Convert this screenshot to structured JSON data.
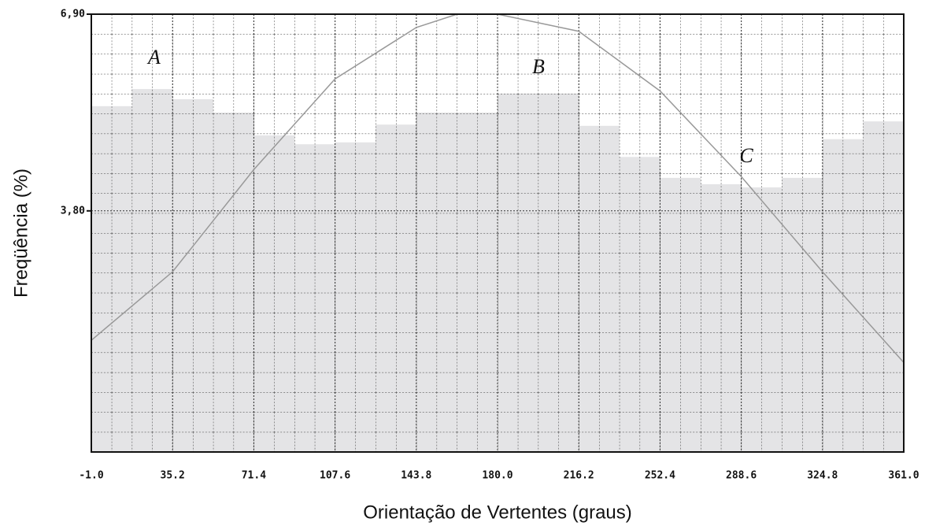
{
  "chart_data": {
    "type": "histogram",
    "x_label": "Orientação de Vertentes (graus)",
    "y_label": "Freqüência (%)",
    "bins": [
      -1,
      17.1,
      35.2,
      53.3,
      71.4,
      89.5,
      107.6,
      125.7,
      143.8,
      161.9,
      180,
      198.1,
      216.2,
      234.3,
      252.4,
      270.5,
      288.6,
      306.7,
      324.8,
      342.9,
      361
    ],
    "values": [
      5.45,
      5.72,
      5.56,
      5.35,
      4.99,
      4.85,
      4.88,
      5.16,
      5.35,
      5.35,
      5.65,
      5.65,
      5.14,
      4.65,
      4.32,
      4.22,
      4.17,
      4.32,
      4.93,
      5.21
    ],
    "color": "#e4e4e6",
    "curve": {
      "x": [
        -1,
        35.2,
        71.4,
        107.6,
        143.8,
        162,
        180,
        216.2,
        252.4,
        288.6,
        324.8,
        361
      ],
      "values": [
        1.76,
        2.84,
        4.45,
        5.88,
        6.69,
        6.9,
        6.9,
        6.63,
        5.69,
        4.34,
        2.84,
        1.41
      ],
      "color": "#999999"
    },
    "annotations": [
      "A",
      "B",
      "C"
    ],
    "xlim": [
      -1,
      361
    ],
    "xticks": [
      {
        "value": -1,
        "label": "-1.0"
      },
      35.2,
      71.4,
      107.6,
      143.8,
      {
        "value": 180,
        "label": "180.0"
      },
      216.2,
      252.4,
      288.6,
      324.8,
      {
        "value": 361,
        "label": "361.0"
      }
    ],
    "ylim": [
      0,
      6.9
    ],
    "yticks": [
      {
        "value": 3.8,
        "label": "3,80"
      },
      {
        "value": 6.9,
        "label": "6,90"
      }
    ],
    "grid": true
  }
}
